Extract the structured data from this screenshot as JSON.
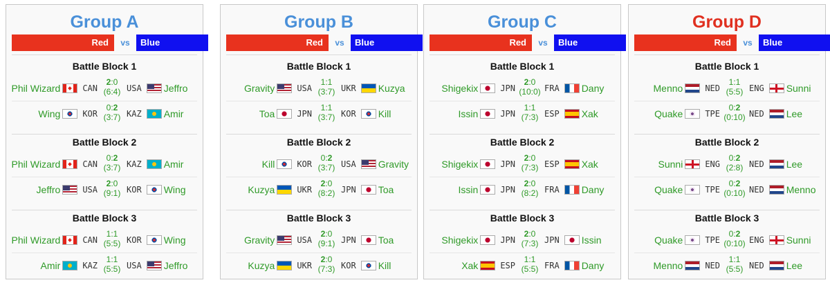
{
  "labels": {
    "red": "Red",
    "vs": "vs",
    "blue": "Blue"
  },
  "colors": {
    "red_bar": "#e8321e",
    "blue_bar": "#1010f0",
    "title_blue": "#4a90d9",
    "title_red": "#e03020",
    "player_green": "#2f9a28"
  },
  "groups": [
    {
      "title": "Group A",
      "title_color": "blue",
      "blocks": [
        {
          "title": "Battle Block 1",
          "matches": [
            {
              "left": {
                "name": "Phil Wizard",
                "code": "CAN",
                "flag": "canada-flag"
              },
              "score": "2:0",
              "winner": "left",
              "sub": "(6:4)",
              "right": {
                "name": "Jeffro",
                "code": "USA",
                "flag": "usa-flag"
              }
            },
            {
              "left": {
                "name": "Wing",
                "code": "KOR",
                "flag": "korea-flag"
              },
              "score": "0:2",
              "winner": "right",
              "sub": "(3:7)",
              "right": {
                "name": "Amir",
                "code": "KAZ",
                "flag": "kazakhstan-flag"
              }
            }
          ]
        },
        {
          "title": "Battle Block 2",
          "matches": [
            {
              "left": {
                "name": "Phil Wizard",
                "code": "CAN",
                "flag": "canada-flag"
              },
              "score": "0:2",
              "winner": "right",
              "sub": "(3:7)",
              "right": {
                "name": "Amir",
                "code": "KAZ",
                "flag": "kazakhstan-flag"
              }
            },
            {
              "left": {
                "name": "Jeffro",
                "code": "USA",
                "flag": "usa-flag"
              },
              "score": "2:0",
              "winner": "left",
              "sub": "(9:1)",
              "right": {
                "name": "Wing",
                "code": "KOR",
                "flag": "korea-flag"
              }
            }
          ]
        },
        {
          "title": "Battle Block 3",
          "matches": [
            {
              "left": {
                "name": "Phil Wizard",
                "code": "CAN",
                "flag": "canada-flag"
              },
              "score": "1:1",
              "winner": "none",
              "sub": "(5:5)",
              "right": {
                "name": "Wing",
                "code": "KOR",
                "flag": "korea-flag"
              }
            },
            {
              "left": {
                "name": "Amir",
                "code": "KAZ",
                "flag": "kazakhstan-flag"
              },
              "score": "1:1",
              "winner": "none",
              "sub": "(5:5)",
              "right": {
                "name": "Jeffro",
                "code": "USA",
                "flag": "usa-flag"
              }
            }
          ]
        }
      ]
    },
    {
      "title": "Group B",
      "title_color": "blue",
      "blocks": [
        {
          "title": "Battle Block 1",
          "matches": [
            {
              "left": {
                "name": "Gravity",
                "code": "USA",
                "flag": "usa-flag"
              },
              "score": "1:1",
              "winner": "none",
              "sub": "(3:7)",
              "right": {
                "name": "Kuzya",
                "code": "UKR",
                "flag": "ukraine-flag"
              }
            },
            {
              "left": {
                "name": "Toa",
                "code": "JPN",
                "flag": "japan-flag"
              },
              "score": "1:1",
              "winner": "none",
              "sub": "(3:7)",
              "right": {
                "name": "Kill",
                "code": "KOR",
                "flag": "korea-flag"
              }
            }
          ]
        },
        {
          "title": "Battle Block 2",
          "matches": [
            {
              "left": {
                "name": "Kill",
                "code": "KOR",
                "flag": "korea-flag"
              },
              "score": "0:2",
              "winner": "right",
              "sub": "(3:7)",
              "right": {
                "name": "Gravity",
                "code": "USA",
                "flag": "usa-flag"
              }
            },
            {
              "left": {
                "name": "Kuzya",
                "code": "UKR",
                "flag": "ukraine-flag"
              },
              "score": "2:0",
              "winner": "left",
              "sub": "(8:2)",
              "right": {
                "name": "Toa",
                "code": "JPN",
                "flag": "japan-flag"
              }
            }
          ]
        },
        {
          "title": "Battle Block 3",
          "matches": [
            {
              "left": {
                "name": "Gravity",
                "code": "USA",
                "flag": "usa-flag"
              },
              "score": "2:0",
              "winner": "left",
              "sub": "(9:1)",
              "right": {
                "name": "Toa",
                "code": "JPN",
                "flag": "japan-flag"
              }
            },
            {
              "left": {
                "name": "Kuzya",
                "code": "UKR",
                "flag": "ukraine-flag"
              },
              "score": "2:0",
              "winner": "left",
              "sub": "(7:3)",
              "right": {
                "name": "Kill",
                "code": "KOR",
                "flag": "korea-flag"
              }
            }
          ]
        }
      ]
    },
    {
      "title": "Group C",
      "title_color": "blue",
      "blocks": [
        {
          "title": "Battle Block 1",
          "matches": [
            {
              "left": {
                "name": "Shigekix",
                "code": "JPN",
                "flag": "japan-flag"
              },
              "score": "2:0",
              "winner": "left",
              "sub": "(10:0)",
              "right": {
                "name": "Dany",
                "code": "FRA",
                "flag": "france-flag"
              }
            },
            {
              "left": {
                "name": "Issin",
                "code": "JPN",
                "flag": "japan-flag"
              },
              "score": "1:1",
              "winner": "none",
              "sub": "(7:3)",
              "right": {
                "name": "Xak",
                "code": "ESP",
                "flag": "spain-flag"
              }
            }
          ]
        },
        {
          "title": "Battle Block 2",
          "matches": [
            {
              "left": {
                "name": "Shigekix",
                "code": "JPN",
                "flag": "japan-flag"
              },
              "score": "2:0",
              "winner": "left",
              "sub": "(7:3)",
              "right": {
                "name": "Xak",
                "code": "ESP",
                "flag": "spain-flag"
              }
            },
            {
              "left": {
                "name": "Issin",
                "code": "JPN",
                "flag": "japan-flag"
              },
              "score": "2:0",
              "winner": "left",
              "sub": "(8:2)",
              "right": {
                "name": "Dany",
                "code": "FRA",
                "flag": "france-flag"
              }
            }
          ]
        },
        {
          "title": "Battle Block 3",
          "matches": [
            {
              "left": {
                "name": "Shigekix",
                "code": "JPN",
                "flag": "japan-flag"
              },
              "score": "2:0",
              "winner": "left",
              "sub": "(7:3)",
              "right": {
                "name": "Issin",
                "code": "JPN",
                "flag": "japan-flag"
              }
            },
            {
              "left": {
                "name": "Xak",
                "code": "ESP",
                "flag": "spain-flag"
              },
              "score": "1:1",
              "winner": "none",
              "sub": "(5:5)",
              "right": {
                "name": "Dany",
                "code": "FRA",
                "flag": "france-flag"
              }
            }
          ]
        }
      ]
    },
    {
      "title": "Group D",
      "title_color": "red",
      "blocks": [
        {
          "title": "Battle Block 1",
          "matches": [
            {
              "left": {
                "name": "Menno",
                "code": "NED",
                "flag": "netherlands-flag"
              },
              "score": "1:1",
              "winner": "none",
              "sub": "(5:5)",
              "right": {
                "name": "Sunni",
                "code": "ENG",
                "flag": "england-flag"
              }
            },
            {
              "left": {
                "name": "Quake",
                "code": "TPE",
                "flag": "chinese-taipei-flag"
              },
              "score": "0:2",
              "winner": "right",
              "sub": "(0:10)",
              "right": {
                "name": "Lee",
                "code": "NED",
                "flag": "netherlands-flag"
              }
            }
          ]
        },
        {
          "title": "Battle Block 2",
          "matches": [
            {
              "left": {
                "name": "Sunni",
                "code": "ENG",
                "flag": "england-flag"
              },
              "score": "0:2",
              "winner": "right",
              "sub": "(2:8)",
              "right": {
                "name": "Lee",
                "code": "NED",
                "flag": "netherlands-flag"
              }
            },
            {
              "left": {
                "name": "Quake",
                "code": "TPE",
                "flag": "chinese-taipei-flag"
              },
              "score": "0:2",
              "winner": "right",
              "sub": "(0:10)",
              "right": {
                "name": "Menno",
                "code": "NED",
                "flag": "netherlands-flag"
              }
            }
          ]
        },
        {
          "title": "Battle Block 3",
          "matches": [
            {
              "left": {
                "name": "Quake",
                "code": "TPE",
                "flag": "chinese-taipei-flag"
              },
              "score": "0:2",
              "winner": "right",
              "sub": "(0:10)",
              "right": {
                "name": "Sunni",
                "code": "ENG",
                "flag": "england-flag"
              }
            },
            {
              "left": {
                "name": "Menno",
                "code": "NED",
                "flag": "netherlands-flag"
              },
              "score": "1:1",
              "winner": "none",
              "sub": "(5:5)",
              "right": {
                "name": "Lee",
                "code": "NED",
                "flag": "netherlands-flag"
              }
            }
          ]
        }
      ]
    }
  ]
}
